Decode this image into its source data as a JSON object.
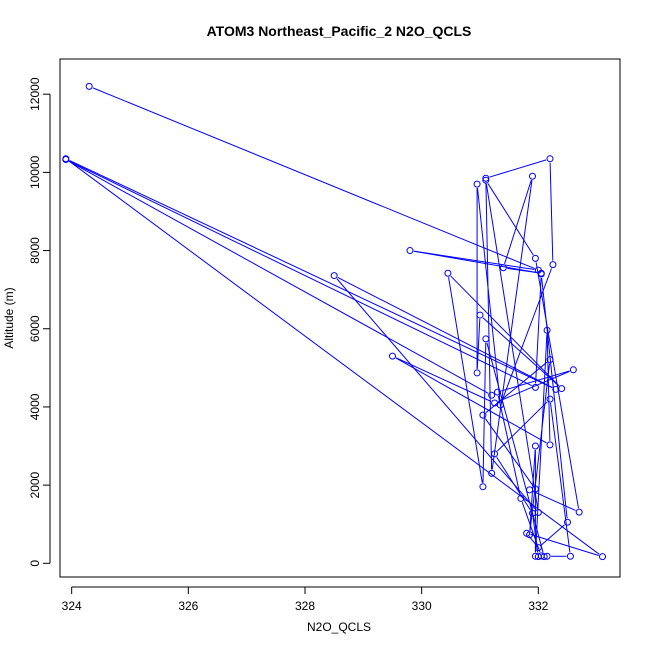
{
  "chart_data": {
    "type": "line",
    "title": "ATOM3 Northeast_Pacific_2 N2O_QCLS",
    "xlabel": "N2O_QCLS",
    "ylabel": "Altitude (m)",
    "xlim": [
      323.8,
      333.4
    ],
    "ylim": [
      -350,
      12900
    ],
    "x_ticks": [
      324,
      326,
      328,
      330,
      332
    ],
    "y_ticks": [
      0,
      2000,
      4000,
      6000,
      8000,
      10000,
      12000
    ],
    "x_tick_labels": [
      "324",
      "326",
      "328",
      "330",
      "332"
    ],
    "y_tick_labels": [
      "0",
      "2000",
      "4000",
      "6000",
      "8000",
      "10000",
      "12000"
    ],
    "grid": false,
    "color": "#0000ff",
    "series": [
      {
        "style": "line+open-circle",
        "points": [
          [
            324.3,
            12200
          ],
          [
            332.0,
            7500
          ],
          [
            329.8,
            8000
          ],
          [
            332.05,
            7420
          ],
          [
            331.4,
            7560
          ],
          [
            331.9,
            9900
          ],
          [
            331.2,
            2300
          ],
          [
            331.1,
            9850
          ],
          [
            332.2,
            10350
          ],
          [
            332.25,
            7640
          ],
          [
            331.35,
            4050
          ],
          [
            330.95,
            9700
          ],
          [
            330.95,
            4870
          ],
          [
            331.0,
            6350
          ],
          [
            332.4,
            4470
          ],
          [
            330.45,
            7420
          ],
          [
            331.05,
            1960
          ],
          [
            331.1,
            5740
          ],
          [
            332.1,
            170
          ],
          [
            332.15,
            180
          ],
          [
            332.55,
            180
          ],
          [
            332.2,
            4200
          ],
          [
            331.25,
            2800
          ],
          [
            331.9,
            1280
          ],
          [
            332.0,
            170
          ],
          [
            332.05,
            190
          ],
          [
            331.7,
            1660
          ],
          [
            331.3,
            4380
          ],
          [
            332.6,
            4950
          ],
          [
            331.25,
            4100
          ],
          [
            329.5,
            5300
          ],
          [
            332.2,
            3030
          ],
          [
            332.15,
            5960
          ],
          [
            331.95,
            180
          ],
          [
            331.95,
            3000
          ],
          [
            331.85,
            730
          ],
          [
            332.2,
            5210
          ],
          [
            331.05,
            3790
          ],
          [
            331.95,
            1900
          ],
          [
            331.85,
            1880
          ],
          [
            332.7,
            1310
          ],
          [
            331.95,
            7800
          ],
          [
            331.1,
            9800
          ],
          [
            332.0,
            1300
          ],
          [
            328.5,
            7360
          ],
          [
            332.3,
            4450
          ],
          [
            323.9,
            10350
          ],
          [
            333.1,
            170
          ],
          [
            331.8,
            770
          ],
          [
            332.0,
            400
          ],
          [
            332.5,
            1050
          ],
          [
            332.05,
            7400
          ],
          [
            331.95,
            4500
          ],
          [
            323.9,
            10330
          ],
          [
            331.2,
            4300
          ]
        ]
      }
    ]
  }
}
